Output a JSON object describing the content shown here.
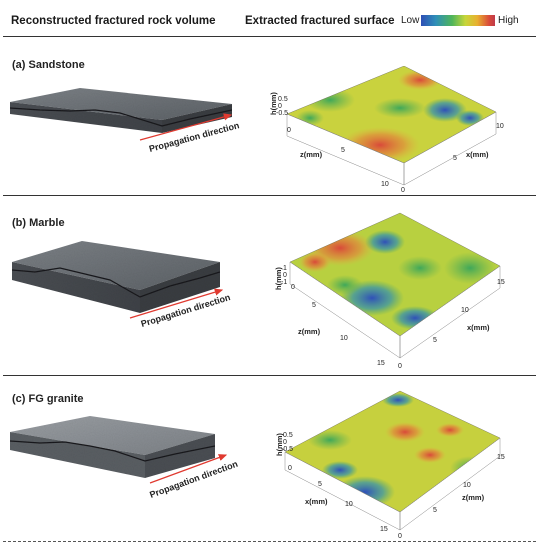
{
  "header": {
    "left_title": "Reconstructed fractured rock volume",
    "right_title": "Extracted fractured surface",
    "legend_low": "Low",
    "legend_high": "High"
  },
  "propagation_label": "Propagation direction",
  "colors": {
    "blue": "#2e4fb5",
    "green": "#4fb55a",
    "yellow": "#d8d03a",
    "red": "#d94a3a",
    "rock": "#5d6166"
  },
  "panels": [
    {
      "label": "(a) Sandstone",
      "h_label": "h(mm)",
      "h_ticks": [
        "0.5",
        "0",
        "-0.5"
      ],
      "z_label": "z(mm)",
      "x_label": "x(mm)",
      "z_ticks": [
        "0",
        "5",
        "10"
      ],
      "x_ticks": [
        "0",
        "5",
        "10"
      ]
    },
    {
      "label": "(b) Marble",
      "h_label": "h(mm)",
      "h_ticks": [
        "1",
        "0",
        "-1"
      ],
      "z_label": "z(mm)",
      "x_label": "x(mm)",
      "z_ticks": [
        "0",
        "5",
        "10",
        "15"
      ],
      "x_ticks": [
        "0",
        "5",
        "10",
        "15"
      ]
    },
    {
      "label": "(c) FG granite",
      "h_label": "h(mm)",
      "h_ticks": [
        "0.5",
        "0",
        "-0.5"
      ],
      "z_label": "z(mm)",
      "x_label": "x(mm)",
      "z_ticks": [
        "0",
        "5",
        "10",
        "15"
      ],
      "x_ticks": [
        "0",
        "5",
        "10",
        "15"
      ]
    }
  ]
}
